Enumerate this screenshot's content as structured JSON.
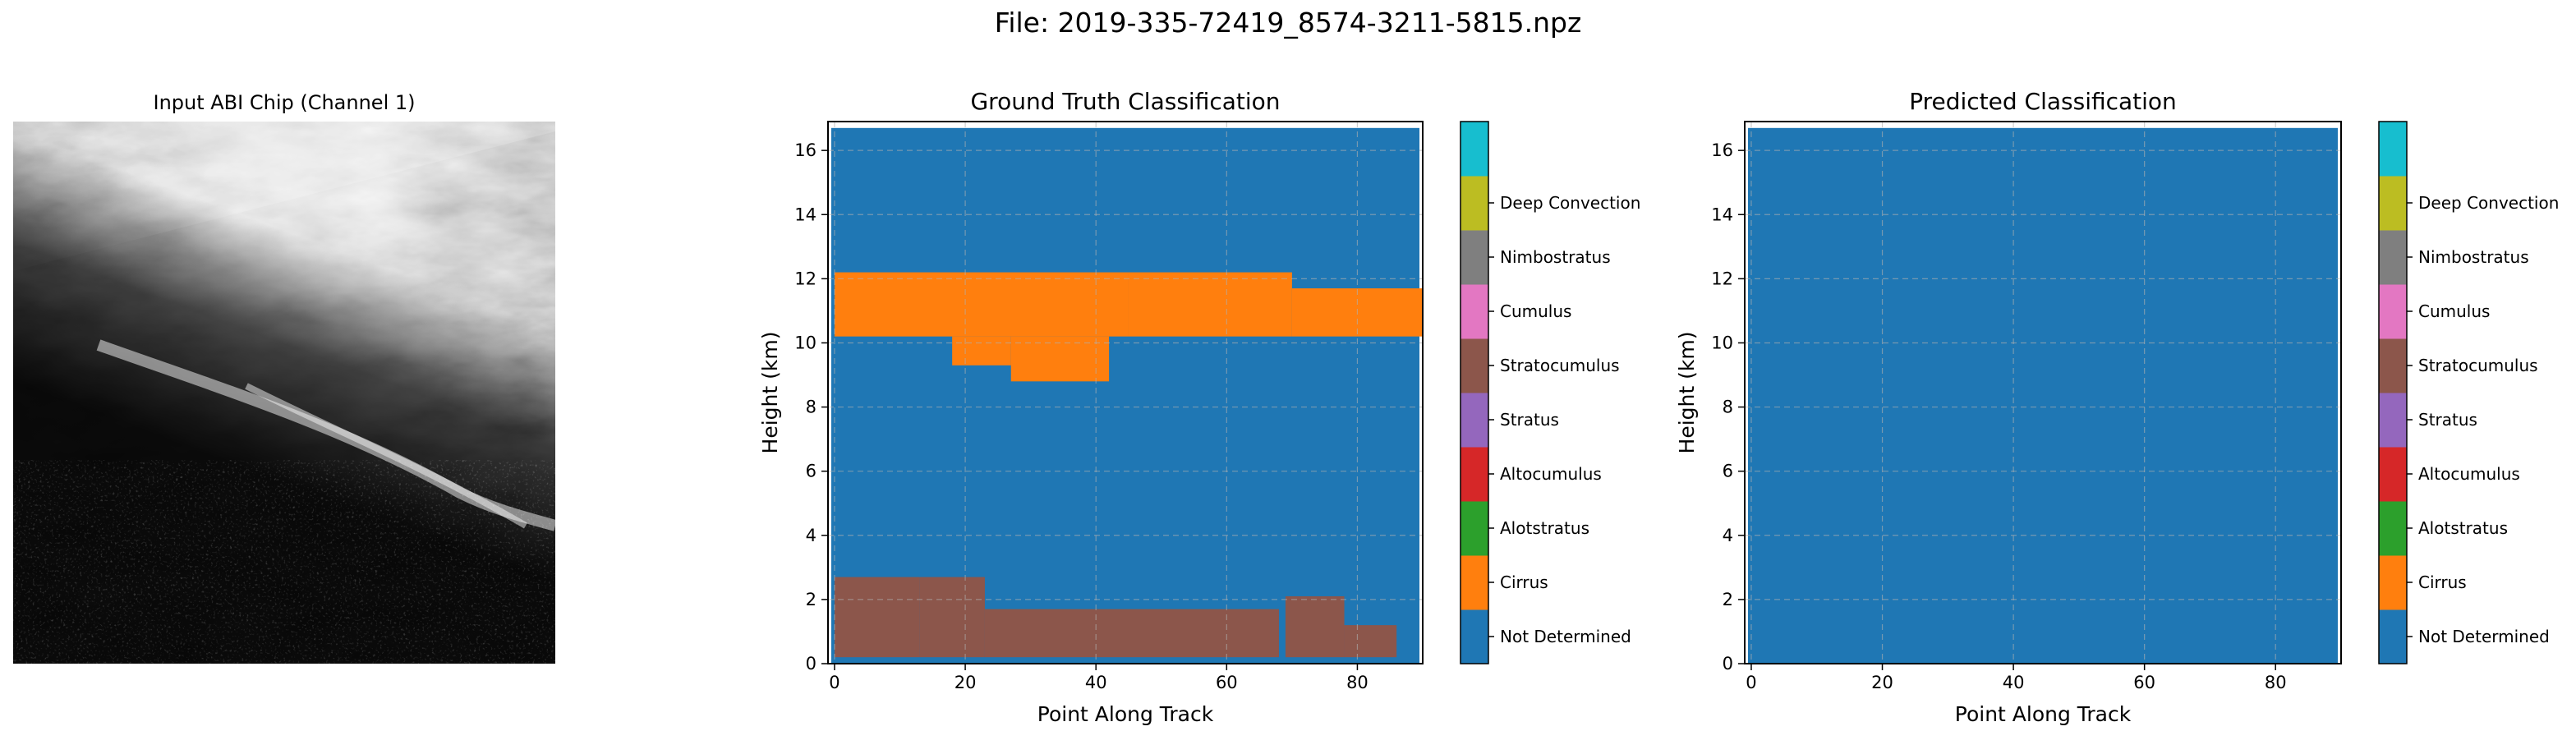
{
  "figure": {
    "title": "File: 2019-335-72419_8574-3211-5815.npz"
  },
  "colors": {
    "classes": [
      "#1f77b4",
      "#ff7f0e",
      "#2ca02c",
      "#d62728",
      "#9467bd",
      "#8c564b",
      "#e377c2",
      "#7f7f7f",
      "#bcbd22",
      "#17becf"
    ],
    "grid": "#b0b0b0"
  },
  "input_panel": {
    "title": "Input ABI Chip (Channel 1)"
  },
  "chart_data": [
    {
      "type": "heatmap",
      "title": "Ground Truth Classification",
      "xlabel": "Point Along Track",
      "ylabel": "Height (km)",
      "xlim": [
        -1,
        90
      ],
      "ylim": [
        0,
        16.9
      ],
      "xticks": [
        "0",
        "20",
        "40",
        "60",
        "80"
      ],
      "yticks": [
        "0",
        "2",
        "4",
        "6",
        "8",
        "10",
        "12",
        "14",
        "16"
      ],
      "grid": true,
      "background_class": "Not Determined",
      "data_top_km": 16.7,
      "regions": [
        {
          "class": "Cirrus",
          "x": [
            0,
            45
          ],
          "y": [
            10.2,
            12.2
          ]
        },
        {
          "class": "Cirrus",
          "x": [
            18,
            27
          ],
          "y": [
            9.3,
            10.2
          ]
        },
        {
          "class": "Cirrus",
          "x": [
            27,
            42
          ],
          "y": [
            8.8,
            10.2
          ]
        },
        {
          "class": "Cirrus",
          "x": [
            45,
            70
          ],
          "y": [
            10.2,
            12.2
          ]
        },
        {
          "class": "Cirrus",
          "x": [
            70,
            90
          ],
          "y": [
            10.2,
            11.7
          ]
        },
        {
          "class": "Stratocumulus",
          "x": [
            0,
            13
          ],
          "y": [
            0.2,
            2.7
          ]
        },
        {
          "class": "Stratocumulus",
          "x": [
            13,
            23
          ],
          "y": [
            0.2,
            2.7
          ]
        },
        {
          "class": "Stratocumulus",
          "x": [
            23,
            68
          ],
          "y": [
            0.2,
            1.7
          ]
        },
        {
          "class": "Stratocumulus",
          "x": [
            69,
            78
          ],
          "y": [
            0.2,
            2.1
          ]
        },
        {
          "class": "Stratocumulus",
          "x": [
            78,
            86
          ],
          "y": [
            0.2,
            1.2
          ]
        }
      ]
    },
    {
      "type": "heatmap",
      "title": "Predicted Classification",
      "xlabel": "Point Along Track",
      "ylabel": "Height (km)",
      "xlim": [
        -1,
        90
      ],
      "ylim": [
        0,
        16.9
      ],
      "xticks": [
        "0",
        "20",
        "40",
        "60",
        "80"
      ],
      "yticks": [
        "0",
        "2",
        "4",
        "6",
        "8",
        "10",
        "12",
        "14",
        "16"
      ],
      "grid": true,
      "background_class": "Not Determined",
      "data_top_km": 16.7,
      "regions": []
    }
  ],
  "legend": {
    "classes": [
      "Not Determined",
      "Cirrus",
      "Alotstratus",
      "Altocumulus",
      "Stratus",
      "Stratocumulus",
      "Cumulus",
      "Nimbostratus",
      "Deep Convection"
    ]
  }
}
